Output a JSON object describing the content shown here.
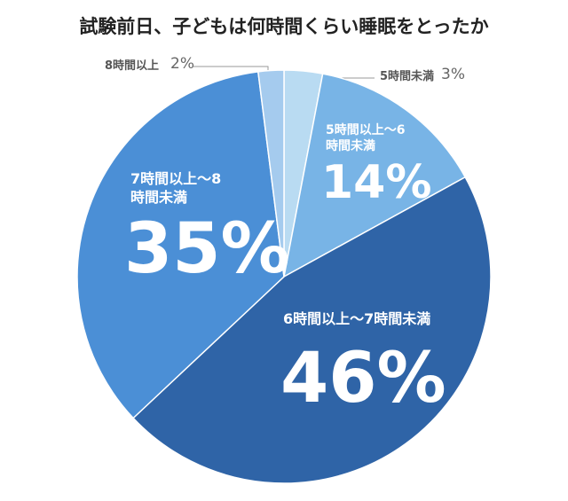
{
  "chart_data": {
    "type": "pie",
    "title": "試験前日、子どもは何時間くらい睡眠をとったか",
    "categories": [
      "5時間未満",
      "5時間以上～6時間未満",
      "6時間以上～7時間未満",
      "7時間以上～8時間未満",
      "8時間以上"
    ],
    "values": [
      3,
      14,
      46,
      35,
      2
    ],
    "value_labels": [
      "3%",
      "14%",
      "46%",
      "35%",
      "2%"
    ],
    "colors": [
      "#b9dbf2",
      "#78b4e6",
      "#2f64a7",
      "#4b8fd6",
      "#a5cbee"
    ]
  }
}
